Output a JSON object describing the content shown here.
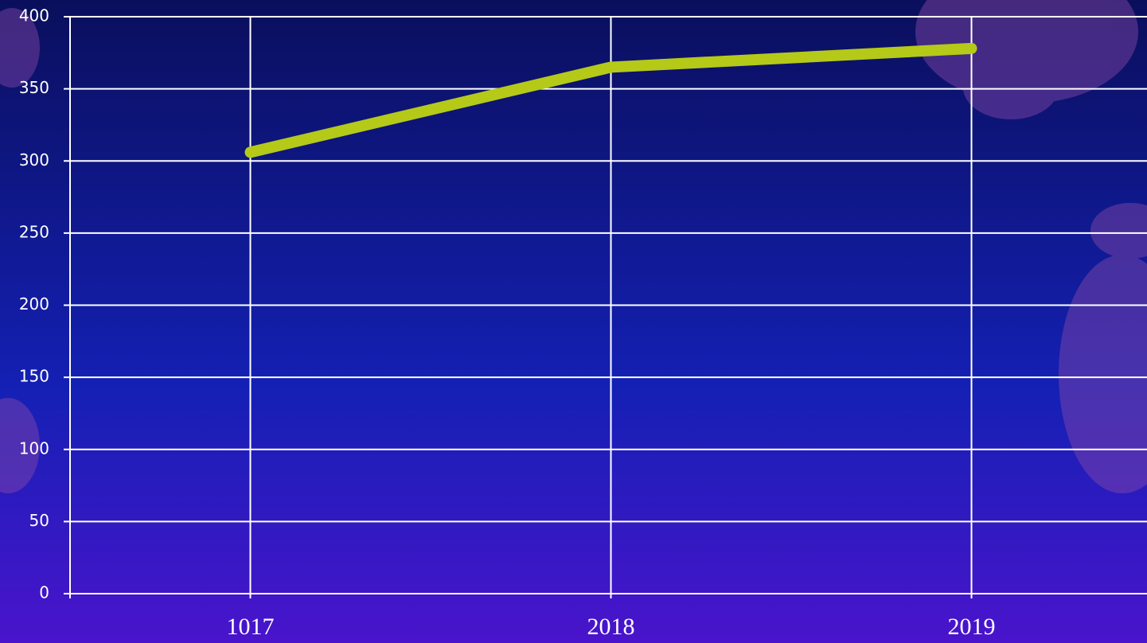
{
  "chart_data": {
    "type": "line",
    "categories": [
      "1017",
      "2018",
      "2019"
    ],
    "series": [
      {
        "values": [
          306,
          365,
          378
        ],
        "color": "#b5c918"
      }
    ],
    "ylim": [
      0,
      400
    ],
    "yticks": [
      0,
      50,
      100,
      150,
      200,
      250,
      300,
      350,
      400
    ],
    "grid": true
  }
}
